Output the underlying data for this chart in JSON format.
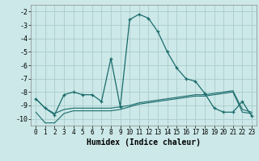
{
  "xlabel": "Humidex (Indice chaleur)",
  "background_color": "#cce8e8",
  "grid_color": "#aacccc",
  "line_color": "#1a6b6b",
  "xlim": [
    -0.5,
    23.5
  ],
  "ylim": [
    -10.5,
    -1.5
  ],
  "yticks": [
    -2,
    -3,
    -4,
    -5,
    -6,
    -7,
    -8,
    -9,
    -10
  ],
  "xticks": [
    0,
    1,
    2,
    3,
    4,
    5,
    6,
    7,
    8,
    9,
    10,
    11,
    12,
    13,
    14,
    15,
    16,
    17,
    18,
    19,
    20,
    21,
    22,
    23
  ],
  "series1_x": [
    0,
    1,
    2,
    3,
    4,
    5,
    6,
    7,
    8,
    9,
    10,
    11,
    12,
    13,
    14,
    15,
    16,
    17,
    18,
    19,
    20,
    21,
    22,
    23
  ],
  "series1_y": [
    -9.5,
    -10.3,
    -10.3,
    -9.6,
    -9.4,
    -9.4,
    -9.4,
    -9.4,
    -9.4,
    -9.3,
    -9.1,
    -8.9,
    -8.8,
    -8.7,
    -8.6,
    -8.5,
    -8.4,
    -8.3,
    -8.3,
    -8.2,
    -8.1,
    -8.0,
    -9.5,
    -9.6
  ],
  "series2_x": [
    0,
    1,
    2,
    3,
    4,
    5,
    6,
    7,
    8,
    9,
    10,
    11,
    12,
    13,
    14,
    15,
    16,
    17,
    18,
    19,
    20,
    21,
    22,
    23
  ],
  "series2_y": [
    -8.5,
    -9.2,
    -9.6,
    -9.3,
    -9.2,
    -9.2,
    -9.2,
    -9.2,
    -9.2,
    -9.1,
    -9.0,
    -8.8,
    -8.7,
    -8.6,
    -8.5,
    -8.4,
    -8.3,
    -8.2,
    -8.2,
    -8.1,
    -8.0,
    -7.9,
    -9.3,
    -9.5
  ],
  "series3_x": [
    0,
    1,
    2,
    3,
    4,
    5,
    6,
    7,
    8,
    9,
    10,
    11,
    12,
    13,
    14,
    15,
    16,
    17,
    18,
    19,
    20,
    21,
    22,
    23
  ],
  "series3_y": [
    -8.5,
    -9.2,
    -9.7,
    -8.2,
    -8.0,
    -8.2,
    -8.2,
    -8.7,
    -5.5,
    -9.1,
    -2.6,
    -2.2,
    -2.5,
    -3.5,
    -5.0,
    -6.2,
    -7.0,
    -7.2,
    -8.1,
    -9.2,
    -9.5,
    -9.5,
    -8.7,
    -9.8
  ]
}
